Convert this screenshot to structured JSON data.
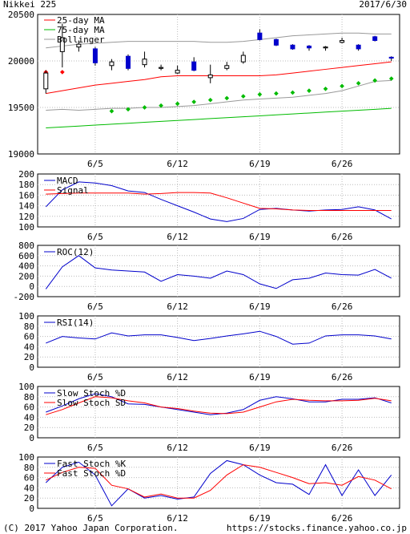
{
  "header": {
    "title": "Nikkei 225",
    "date": "2017/6/30"
  },
  "footer": {
    "copyright": "(C) 2017 Yahoo Japan Corporation.",
    "url": "https://stocks.finance.yahoo.co.jp"
  },
  "colors": {
    "red": "#ff0000",
    "green": "#00bb00",
    "gray": "#999999",
    "blue": "#0000cc",
    "grid": "#bbbbbb"
  },
  "chart_data": [
    {
      "type": "candlestick",
      "title": "",
      "ylim": [
        19000,
        20500
      ],
      "yticks": [
        19000,
        19500,
        20000,
        20500
      ],
      "xticks": [
        {
          "i": 3,
          "label": "6/5"
        },
        {
          "i": 8,
          "label": "6/12"
        },
        {
          "i": 13,
          "label": "6/19"
        },
        {
          "i": 18,
          "label": "6/26"
        }
      ],
      "legend": [
        "25-day MA",
        "75-day MA",
        "Bollinger"
      ],
      "ohlc": [
        [
          19700,
          19900,
          19650,
          19870
        ],
        [
          20100,
          20400,
          19930,
          20250
        ],
        [
          20150,
          20220,
          20100,
          20180
        ],
        [
          20130,
          20150,
          19950,
          19980
        ],
        [
          19950,
          20020,
          19900,
          19990
        ],
        [
          20050,
          20070,
          19900,
          19920
        ],
        [
          19960,
          20100,
          19930,
          20020
        ],
        [
          19920,
          19960,
          19900,
          19930
        ],
        [
          19870,
          19950,
          19860,
          19900
        ],
        [
          19990,
          20040,
          19890,
          19900
        ],
        [
          19820,
          19960,
          19760,
          19850
        ],
        [
          19920,
          19990,
          19900,
          19950
        ],
        [
          19990,
          20100,
          19970,
          20060
        ],
        [
          20300,
          20340,
          20220,
          20230
        ],
        [
          20230,
          20240,
          20160,
          20170
        ],
        [
          20170,
          20180,
          20120,
          20130
        ],
        [
          20160,
          20170,
          20110,
          20140
        ],
        [
          20140,
          20160,
          20110,
          20150
        ],
        [
          20200,
          20250,
          20190,
          20220
        ],
        [
          20170,
          20180,
          20110,
          20130
        ],
        [
          20260,
          20270,
          20210,
          20220
        ],
        [
          20040,
          20050,
          20000,
          20030
        ]
      ],
      "ma25": [
        19650,
        19680,
        19710,
        19740,
        19760,
        19780,
        19800,
        19830,
        19840,
        19840,
        19840,
        19840,
        19840,
        19840,
        19850,
        19870,
        19890,
        19910,
        19930,
        19950,
        19970,
        19990
      ],
      "ma75": [
        19280,
        19290,
        19300,
        19310,
        19320,
        19330,
        19340,
        19350,
        19360,
        19370,
        19380,
        19390,
        19400,
        19410,
        19420,
        19430,
        19440,
        19450,
        19460,
        19470,
        19480,
        19490
      ],
      "bb_upper": [
        20140,
        20160,
        20180,
        20190,
        20200,
        20210,
        20210,
        20210,
        20210,
        20210,
        20200,
        20200,
        20210,
        20230,
        20250,
        20270,
        20280,
        20290,
        20300,
        20300,
        20290,
        20290
      ],
      "bb_lower": [
        19470,
        19480,
        19470,
        19480,
        19490,
        19490,
        19500,
        19500,
        19510,
        19520,
        19540,
        19560,
        19580,
        19590,
        19600,
        19610,
        19630,
        19650,
        19680,
        19730,
        19780,
        19790
      ],
      "parabolic": [
        19880,
        19880,
        null,
        null,
        19460,
        19480,
        19500,
        19520,
        19540,
        19560,
        19580,
        19600,
        19620,
        19640,
        19650,
        19660,
        19680,
        19700,
        19730,
        19760,
        19790,
        19810
      ]
    },
    {
      "type": "line",
      "ylim": [
        100,
        200
      ],
      "yticks": [
        100,
        120,
        140,
        160,
        180,
        200
      ],
      "xticks": [
        {
          "i": 3,
          "label": "6/5"
        },
        {
          "i": 8,
          "label": "6/12"
        },
        {
          "i": 13,
          "label": "6/19"
        },
        {
          "i": 18,
          "label": "6/26"
        }
      ],
      "series": [
        {
          "name": "MACD",
          "color": "#0000cc",
          "values": [
            138,
            170,
            185,
            183,
            178,
            168,
            165,
            152,
            140,
            128,
            115,
            110,
            116,
            133,
            135,
            132,
            130,
            132,
            133,
            138,
            132,
            115
          ]
        },
        {
          "name": "Signal",
          "color": "#ff0000",
          "values": [
            162,
            163,
            164,
            164,
            164,
            164,
            162,
            163,
            165,
            165,
            164,
            155,
            145,
            135,
            134,
            132,
            131,
            131,
            131,
            131,
            131,
            131
          ]
        }
      ]
    },
    {
      "type": "line",
      "ylim": [
        -200,
        800
      ],
      "yticks": [
        -200,
        0,
        200,
        400,
        600,
        800
      ],
      "xticks": [
        {
          "i": 3,
          "label": "6/5"
        },
        {
          "i": 8,
          "label": "6/12"
        },
        {
          "i": 13,
          "label": "6/19"
        },
        {
          "i": 18,
          "label": "6/26"
        }
      ],
      "series": [
        {
          "name": "ROC(12)",
          "color": "#0000cc",
          "values": [
            -50,
            380,
            600,
            360,
            320,
            300,
            280,
            100,
            230,
            200,
            160,
            300,
            230,
            50,
            -40,
            130,
            160,
            260,
            230,
            220,
            330,
            160
          ]
        }
      ]
    },
    {
      "type": "line",
      "ylim": [
        0,
        100
      ],
      "yticks": [
        0,
        20,
        40,
        60,
        80,
        100
      ],
      "xticks": [
        {
          "i": 3,
          "label": "6/5"
        },
        {
          "i": 8,
          "label": "6/12"
        },
        {
          "i": 13,
          "label": "6/19"
        },
        {
          "i": 18,
          "label": "6/26"
        }
      ],
      "series": [
        {
          "name": "RSI(14)",
          "color": "#0000cc",
          "values": [
            47,
            60,
            57,
            55,
            67,
            61,
            63,
            63,
            58,
            52,
            56,
            61,
            65,
            70,
            60,
            45,
            47,
            61,
            63,
            63,
            61,
            55
          ]
        }
      ]
    },
    {
      "type": "line",
      "ylim": [
        0,
        100
      ],
      "yticks": [
        0,
        20,
        40,
        60,
        80,
        100
      ],
      "xticks": [
        {
          "i": 3,
          "label": "6/5"
        },
        {
          "i": 8,
          "label": "6/12"
        },
        {
          "i": 13,
          "label": "6/19"
        },
        {
          "i": 18,
          "label": "6/26"
        }
      ],
      "series": [
        {
          "name": "Slow Stoch %D",
          "color": "#0000cc",
          "values": [
            50,
            62,
            76,
            86,
            80,
            66,
            65,
            60,
            55,
            50,
            45,
            48,
            55,
            73,
            80,
            76,
            70,
            70,
            75,
            75,
            78,
            68
          ]
        },
        {
          "name": "Slow Stoch SD",
          "color": "#ff0000",
          "values": [
            45,
            55,
            68,
            80,
            78,
            72,
            68,
            60,
            57,
            52,
            48,
            47,
            50,
            60,
            70,
            75,
            73,
            72,
            72,
            73,
            77,
            72
          ]
        }
      ]
    },
    {
      "type": "line",
      "ylim": [
        0,
        100
      ],
      "yticks": [
        0,
        20,
        40,
        60,
        80,
        100
      ],
      "xticks": [
        {
          "i": 3,
          "label": "6/5"
        },
        {
          "i": 8,
          "label": "6/12"
        },
        {
          "i": 13,
          "label": "6/19"
        },
        {
          "i": 18,
          "label": "6/26"
        }
      ],
      "series": [
        {
          "name": "Fast Stoch %K",
          "color": "#0000cc",
          "values": [
            50,
            80,
            90,
            65,
            5,
            38,
            20,
            25,
            18,
            22,
            68,
            93,
            85,
            65,
            50,
            47,
            27,
            85,
            25,
            75,
            25,
            65
          ]
        },
        {
          "name": "Fast Stoch %D",
          "color": "#ff0000",
          "values": [
            55,
            70,
            80,
            78,
            45,
            38,
            22,
            28,
            20,
            20,
            35,
            65,
            85,
            80,
            70,
            60,
            48,
            50,
            45,
            62,
            55,
            38
          ]
        }
      ]
    }
  ]
}
